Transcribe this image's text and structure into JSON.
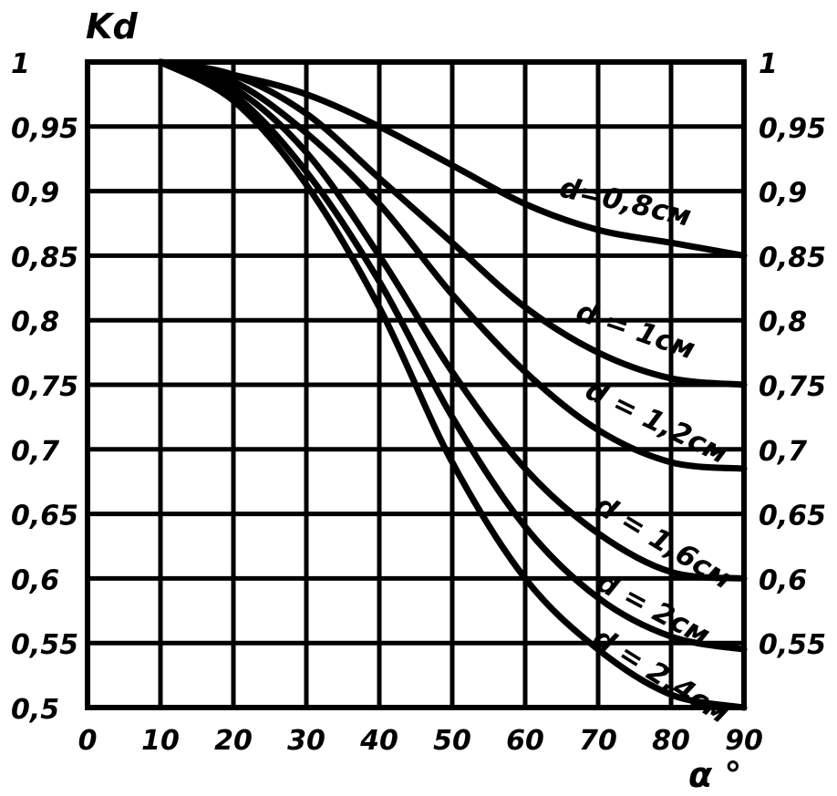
{
  "chart_data": {
    "type": "line",
    "ylabel": "Kd",
    "xlabel": "α °",
    "xlim": [
      0,
      90
    ],
    "ylim": [
      0.5,
      1
    ],
    "x_ticks": [
      "0",
      "10",
      "20",
      "30",
      "40",
      "50",
      "60",
      "70",
      "80",
      "90"
    ],
    "y_ticks": [
      "1",
      "0,95",
      "0,9",
      "0,85",
      "0,8",
      "0,75",
      "0,7",
      "0,65",
      "0,6",
      "0,55",
      "0,5"
    ],
    "y_ticks_right": [
      "1",
      "0,95",
      "0,9",
      "0,85",
      "0,8",
      "0,75",
      "0,7",
      "0,65",
      "0,6",
      "0,55"
    ],
    "grid": true,
    "series": [
      {
        "name": "d=0,8см",
        "x": [
          10,
          20,
          30,
          40,
          50,
          60,
          70,
          80,
          90
        ],
        "y": [
          1.0,
          0.99,
          0.975,
          0.95,
          0.92,
          0.89,
          0.87,
          0.86,
          0.85
        ]
      },
      {
        "name": "d = 1см",
        "x": [
          10,
          20,
          30,
          40,
          50,
          60,
          70,
          80,
          90
        ],
        "y": [
          1.0,
          0.99,
          0.96,
          0.91,
          0.86,
          0.81,
          0.775,
          0.755,
          0.75
        ]
      },
      {
        "name": "d = 1,2см",
        "x": [
          10,
          20,
          30,
          40,
          50,
          60,
          70,
          80,
          90
        ],
        "y": [
          1.0,
          0.985,
          0.945,
          0.89,
          0.82,
          0.76,
          0.715,
          0.69,
          0.685
        ]
      },
      {
        "name": "d = 1,6см",
        "x": [
          10,
          20,
          30,
          40,
          50,
          60,
          70,
          80,
          90
        ],
        "y": [
          1.0,
          0.98,
          0.93,
          0.85,
          0.76,
          0.685,
          0.635,
          0.605,
          0.6
        ]
      },
      {
        "name": "d = 2см",
        "x": [
          10,
          20,
          30,
          40,
          50,
          60,
          70,
          80,
          90
        ],
        "y": [
          1.0,
          0.975,
          0.915,
          0.83,
          0.725,
          0.64,
          0.585,
          0.555,
          0.545
        ]
      },
      {
        "name": "d = 2,4см",
        "x": [
          10,
          20,
          30,
          40,
          50,
          60,
          70,
          80,
          90
        ],
        "y": [
          1.0,
          0.97,
          0.905,
          0.81,
          0.69,
          0.6,
          0.545,
          0.51,
          0.5
        ]
      }
    ]
  }
}
